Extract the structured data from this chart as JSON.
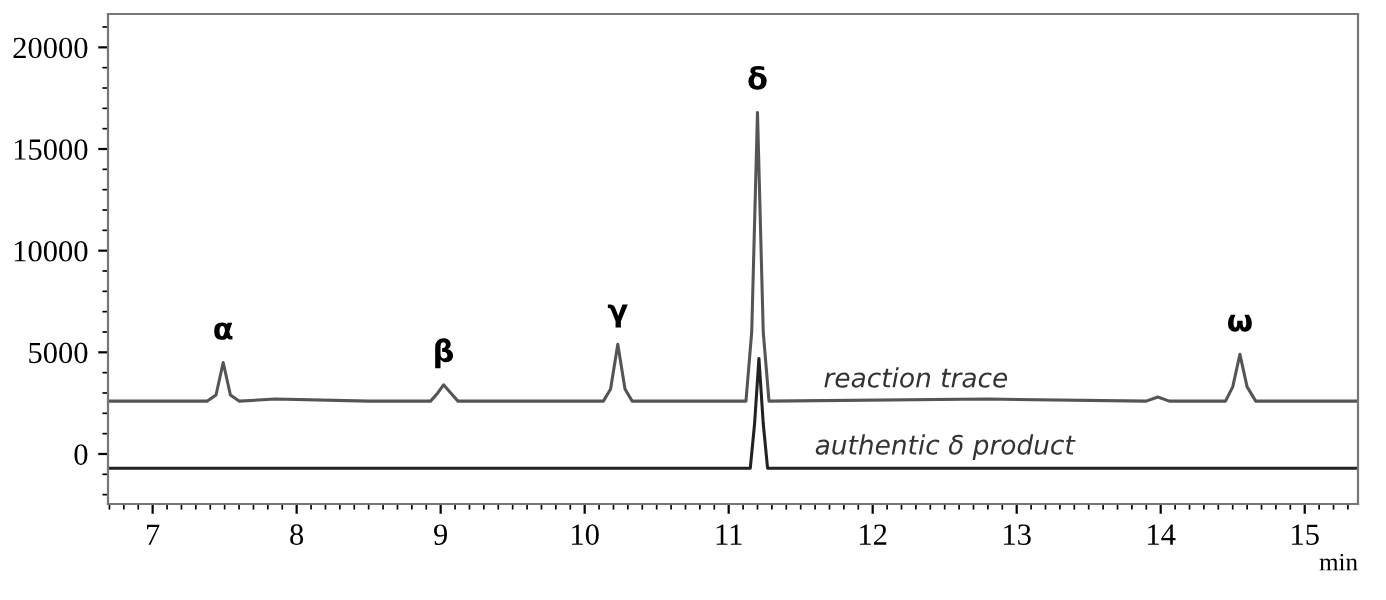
{
  "chart_data": {
    "type": "line",
    "xlabel": "min",
    "xlim": [
      6.69,
      15.37
    ],
    "ylim": [
      -2460,
      21640
    ],
    "xticks": [
      7,
      8,
      9,
      10,
      11,
      12,
      13,
      14,
      15
    ],
    "yticks": [
      0,
      5000,
      10000,
      15000,
      20000
    ],
    "grid": false,
    "legend": false,
    "marker": "none",
    "line_style": "solid",
    "series": [
      {
        "color": "#555555",
        "x": [
          6.69,
          6.9,
          7.38,
          7.44,
          7.49,
          7.54,
          7.6,
          7.85,
          8.5,
          8.93,
          8.98,
          9.02,
          9.07,
          9.12,
          9.8,
          10.13,
          10.18,
          10.23,
          10.28,
          10.33,
          11.12,
          11.16,
          11.2,
          11.24,
          11.28,
          12.8,
          13.9,
          13.98,
          14.06,
          14.45,
          14.5,
          14.55,
          14.6,
          14.66,
          15.37
        ],
        "values": [
          2600,
          2600,
          2600,
          2900,
          4500,
          2900,
          2600,
          2700,
          2600,
          2600,
          3000,
          3400,
          3000,
          2600,
          2600,
          2600,
          3200,
          5400,
          3200,
          2600,
          2600,
          6000,
          16800,
          6000,
          2600,
          2700,
          2600,
          2800,
          2600,
          2600,
          3300,
          4900,
          3300,
          2600,
          2600
        ]
      },
      {
        "color": "#222222",
        "x": [
          6.69,
          11.15,
          11.18,
          11.21,
          11.24,
          11.27,
          15.37
        ],
        "values": [
          -700,
          -700,
          1500,
          4700,
          1500,
          -700,
          -700
        ]
      }
    ],
    "annotations": [
      {
        "text": "α",
        "x": 7.49,
        "y": 4500
      },
      {
        "text": "β",
        "x": 9.02,
        "y": 3400
      },
      {
        "text": "γ",
        "x": 10.23,
        "y": 5400
      },
      {
        "text": "δ",
        "x": 11.2,
        "y": 16800
      },
      {
        "text": "ω",
        "x": 14.55,
        "y": 4900
      },
      {
        "text": "reaction trace",
        "x": 12.3,
        "y": 2600
      },
      {
        "text": "authentic δ product",
        "x": 12.5,
        "y": -700
      }
    ]
  }
}
